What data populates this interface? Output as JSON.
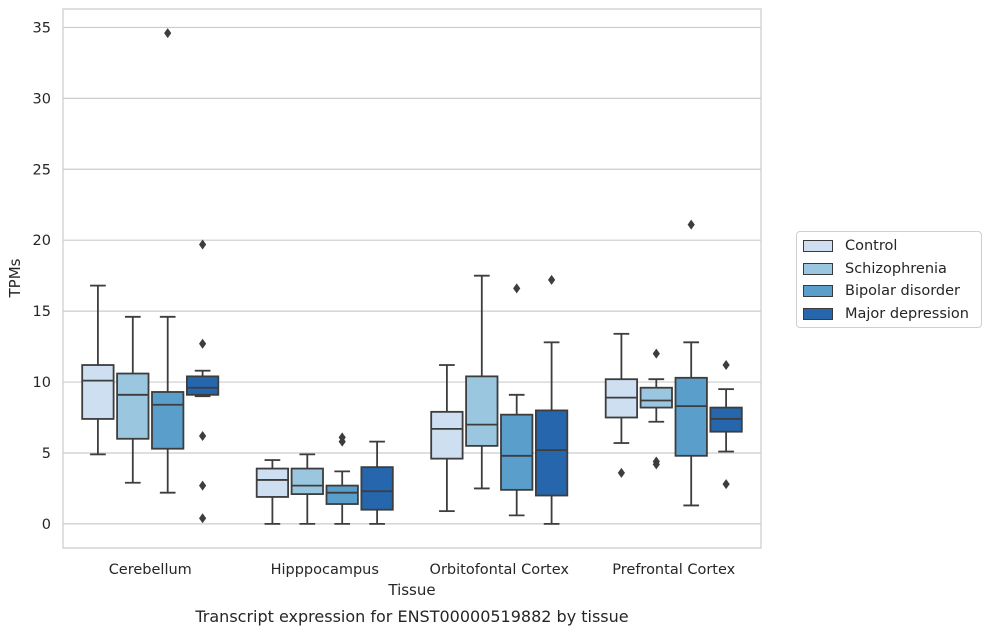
{
  "chart_data": {
    "type": "boxplot",
    "title": "Transcript expression for ENST00000519882 by tissue",
    "xlabel": "Tissue",
    "ylabel": "TPMs",
    "ylim": [
      -1.7,
      36.3
    ],
    "yticks": [
      0,
      5,
      10,
      15,
      20,
      25,
      30,
      35
    ],
    "grid": true,
    "legend_position": "right",
    "categories": [
      "Cerebellum",
      "Hipppocampus",
      "Orbitofontal Cortex",
      "Prefrontal Cortex"
    ],
    "series": [
      {
        "name": "Control",
        "color": "#cddff0",
        "boxes": [
          {
            "whislo": 4.9,
            "q1": 7.4,
            "med": 10.1,
            "q3": 11.2,
            "whishi": 16.8,
            "fliers": []
          },
          {
            "whislo": 0.0,
            "q1": 1.9,
            "med": 3.1,
            "q3": 3.9,
            "whishi": 4.5,
            "fliers": []
          },
          {
            "whislo": 0.9,
            "q1": 4.6,
            "med": 6.7,
            "q3": 7.9,
            "whishi": 11.2,
            "fliers": []
          },
          {
            "whislo": 5.7,
            "q1": 7.5,
            "med": 8.9,
            "q3": 10.2,
            "whishi": 13.4,
            "fliers": [
              3.6
            ]
          }
        ]
      },
      {
        "name": "Schizophrenia",
        "color": "#9ac6e0",
        "boxes": [
          {
            "whislo": 2.9,
            "q1": 6.0,
            "med": 9.1,
            "q3": 10.6,
            "whishi": 14.6,
            "fliers": []
          },
          {
            "whislo": 0.0,
            "q1": 2.1,
            "med": 2.7,
            "q3": 3.9,
            "whishi": 4.9,
            "fliers": []
          },
          {
            "whislo": 2.5,
            "q1": 5.5,
            "med": 7.0,
            "q3": 10.4,
            "whishi": 17.5,
            "fliers": []
          },
          {
            "whislo": 7.2,
            "q1": 8.2,
            "med": 8.7,
            "q3": 9.6,
            "whishi": 10.2,
            "fliers": [
              12.0,
              4.4,
              4.2
            ]
          }
        ]
      },
      {
        "name": "Bipolar disorder",
        "color": "#5a9ecb",
        "boxes": [
          {
            "whislo": 2.2,
            "q1": 5.3,
            "med": 8.4,
            "q3": 9.3,
            "whishi": 14.6,
            "fliers": [
              34.6
            ]
          },
          {
            "whislo": 0.0,
            "q1": 1.4,
            "med": 2.2,
            "q3": 2.7,
            "whishi": 3.7,
            "fliers": [
              6.1,
              5.8
            ]
          },
          {
            "whislo": 0.6,
            "q1": 2.4,
            "med": 4.8,
            "q3": 7.7,
            "whishi": 9.1,
            "fliers": [
              16.6
            ]
          },
          {
            "whislo": 1.3,
            "q1": 4.8,
            "med": 8.3,
            "q3": 10.3,
            "whishi": 12.8,
            "fliers": [
              21.1
            ]
          }
        ]
      },
      {
        "name": "Major depression",
        "color": "#2566ad",
        "boxes": [
          {
            "whislo": 9.0,
            "q1": 9.1,
            "med": 9.6,
            "q3": 10.4,
            "whishi": 10.8,
            "fliers": [
              19.7,
              12.7,
              6.2,
              2.7,
              0.4
            ]
          },
          {
            "whislo": 0.0,
            "q1": 1.0,
            "med": 2.3,
            "q3": 4.0,
            "whishi": 5.8,
            "fliers": []
          },
          {
            "whislo": 0.0,
            "q1": 2.0,
            "med": 5.2,
            "q3": 8.0,
            "whishi": 12.8,
            "fliers": [
              17.2
            ]
          },
          {
            "whislo": 5.1,
            "q1": 6.5,
            "med": 7.4,
            "q3": 8.2,
            "whishi": 9.5,
            "fliers": [
              11.2,
              2.8
            ]
          }
        ]
      }
    ]
  }
}
